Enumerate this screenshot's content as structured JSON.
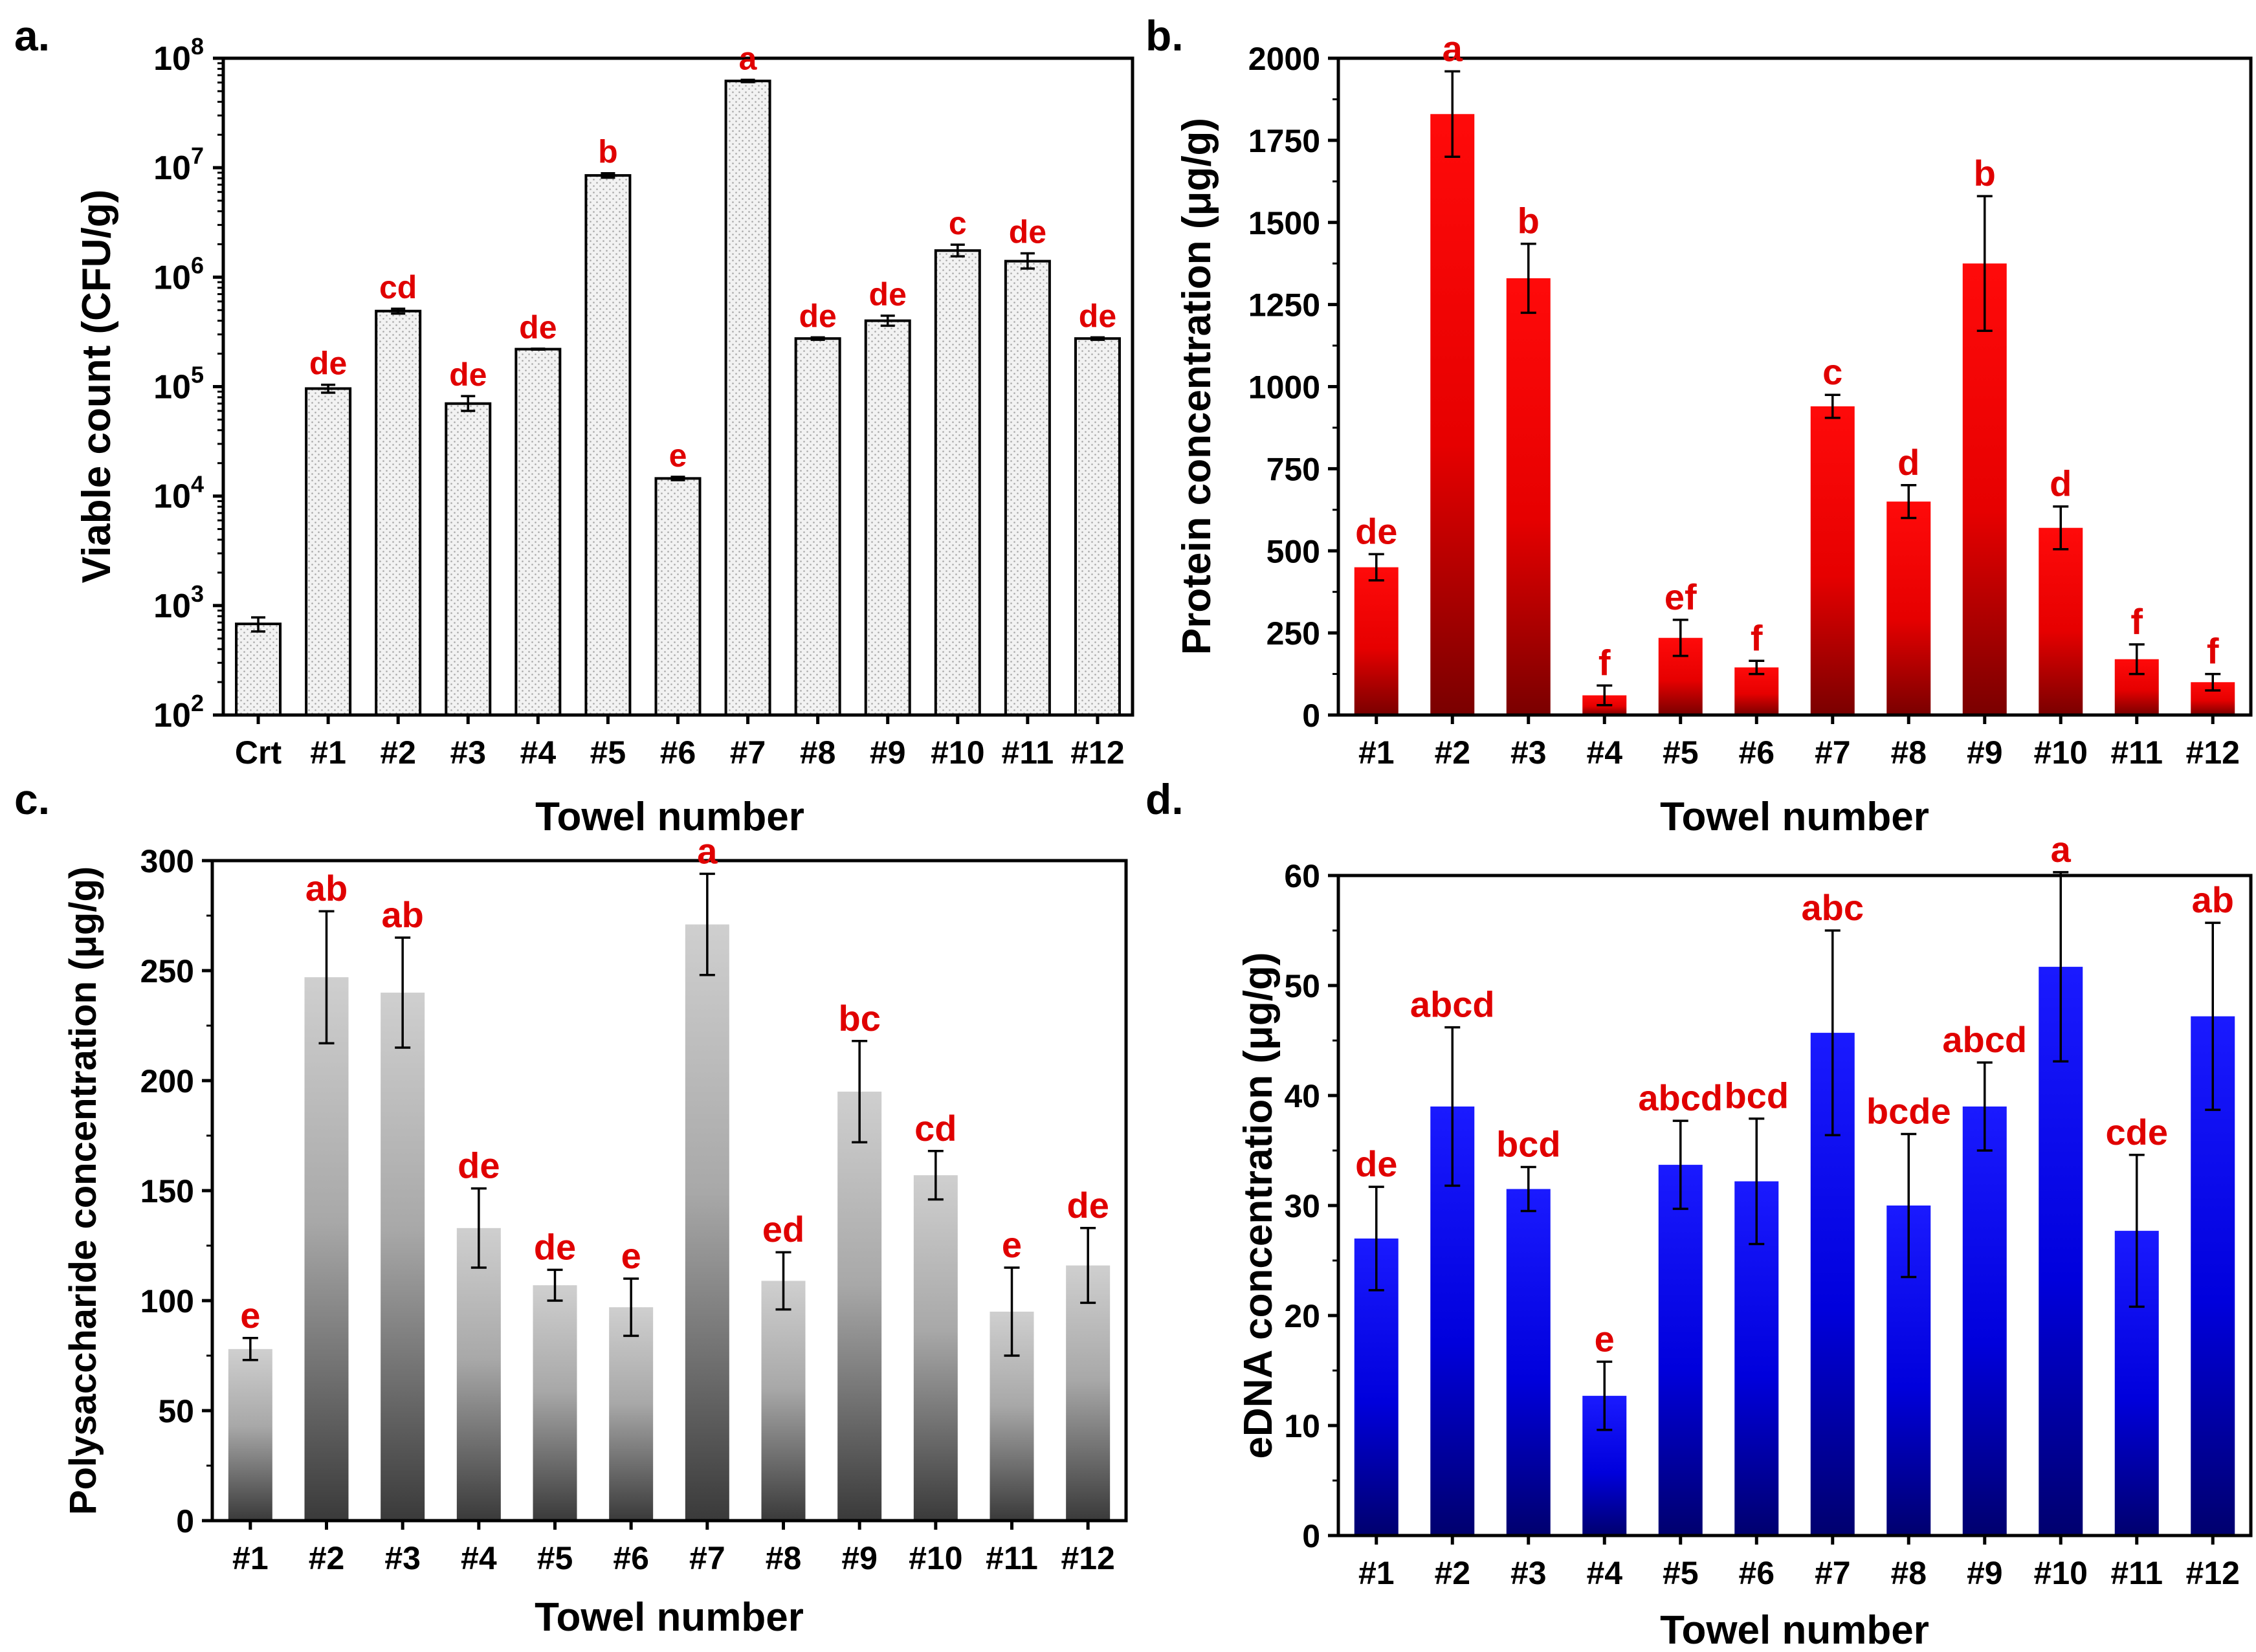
{
  "colors": {
    "sig_letter": "#e00000",
    "axis": "#000000",
    "bar_a_fill": "#f2f2f2",
    "bar_a_dot": "#a6a6a6",
    "bar_b_top": "#ff0a0a",
    "bar_b_bottom": "#7a0000",
    "bar_c_top": "#cfcfcf",
    "bar_c_bottom": "#3a3a3a",
    "bar_d_top": "#1a1aff",
    "bar_d_bottom": "#00006e"
  },
  "chart_data": [
    {
      "panel_label": "a.",
      "type": "bar",
      "yscale": "log",
      "ylabel": "Viable count (CFU/g)",
      "xlabel": "Towel number",
      "ylim": [
        100,
        100000000
      ],
      "ytick_labels": [
        {
          "value": 100,
          "base": "10",
          "exp": "2"
        },
        {
          "value": 1000,
          "base": "10",
          "exp": "3"
        },
        {
          "value": 10000,
          "base": "10",
          "exp": "4"
        },
        {
          "value": 100000,
          "base": "10",
          "exp": "5"
        },
        {
          "value": 1000000,
          "base": "10",
          "exp": "6"
        },
        {
          "value": 10000000,
          "base": "10",
          "exp": "7"
        },
        {
          "value": 100000000,
          "base": "10",
          "exp": "8"
        }
      ],
      "categories": [
        "Crt",
        "#1",
        "#2",
        "#3",
        "#4",
        "#5",
        "#6",
        "#7",
        "#8",
        "#9",
        "#10",
        "#11",
        "#12"
      ],
      "values": [
        680,
        96000,
        490000,
        70000,
        220000,
        8500000,
        14500,
        62000000,
        275000,
        400000,
        1750000,
        1400000,
        275000
      ],
      "err_low": [
        580,
        88000,
        465000,
        60000,
        218000,
        8100000,
        14000,
        60500000,
        268000,
        360000,
        1550000,
        1200000,
        268000
      ],
      "err_high": [
        780,
        104000,
        515000,
        82000,
        222000,
        8900000,
        15000,
        63500000,
        282000,
        445000,
        1980000,
        1650000,
        282000
      ],
      "sig_letters": [
        "",
        "de",
        "cd",
        "de",
        "de",
        "b",
        "e",
        "a",
        "de",
        "de",
        "c",
        "de",
        "de"
      ]
    },
    {
      "panel_label": "b.",
      "type": "bar",
      "yscale": "linear",
      "ylabel": "Protein concentration (μg/g)",
      "xlabel": "Towel number",
      "ylim": [
        0,
        2000
      ],
      "ytick_labels": [
        "0",
        "250",
        "500",
        "750",
        "1000",
        "1250",
        "1500",
        "1750",
        "2000"
      ],
      "categories": [
        "#1",
        "#2",
        "#3",
        "#4",
        "#5",
        "#6",
        "#7",
        "#8",
        "#9",
        "#10",
        "#11",
        "#12"
      ],
      "values": [
        450,
        1830,
        1330,
        60,
        235,
        145,
        940,
        650,
        1375,
        570,
        170,
        100
      ],
      "errors": [
        40,
        130,
        105,
        30,
        55,
        20,
        35,
        50,
        205,
        65,
        45,
        25
      ],
      "sig_letters": [
        "de",
        "a",
        "b",
        "f",
        "ef",
        "f",
        "c",
        "d",
        "b",
        "d",
        "f",
        "f"
      ]
    },
    {
      "panel_label": "c.",
      "type": "bar",
      "yscale": "linear",
      "ylabel": "Polysaccharide concentration (μg/g)",
      "xlabel": "Towel number",
      "ylim": [
        0,
        300
      ],
      "ytick_labels": [
        "0",
        "50",
        "100",
        "150",
        "200",
        "250",
        "300"
      ],
      "categories": [
        "#1",
        "#2",
        "#3",
        "#4",
        "#5",
        "#6",
        "#7",
        "#8",
        "#9",
        "#10",
        "#11",
        "#12"
      ],
      "values": [
        78,
        247,
        240,
        133,
        107,
        97,
        271,
        109,
        195,
        157,
        95,
        116
      ],
      "errors": [
        5,
        30,
        25,
        18,
        7,
        13,
        23,
        13,
        23,
        11,
        20,
        17
      ],
      "sig_letters": [
        "e",
        "ab",
        "ab",
        "de",
        "de",
        "e",
        "a",
        "ed",
        "bc",
        "cd",
        "e",
        "de"
      ]
    },
    {
      "panel_label": "d.",
      "type": "bar",
      "yscale": "linear",
      "ylabel": "eDNA concentration (μg/g)",
      "xlabel": "Towel number",
      "ylim": [
        0,
        60
      ],
      "ytick_labels": [
        "0",
        "10",
        "20",
        "30",
        "40",
        "50",
        "60"
      ],
      "categories": [
        "#1",
        "#2",
        "#3",
        "#4",
        "#5",
        "#6",
        "#7",
        "#8",
        "#9",
        "#10",
        "#11",
        "#12"
      ],
      "values": [
        27,
        39,
        31.5,
        12.7,
        33.7,
        32.2,
        45.7,
        30,
        39,
        51.7,
        27.7,
        47.2
      ],
      "errors": [
        4.7,
        7.2,
        2,
        3.1,
        4,
        5.7,
        9.3,
        6.5,
        4,
        8.6,
        6.9,
        8.5
      ],
      "sig_letters": [
        "de",
        "abcd",
        "bcd",
        "e",
        "abcd",
        "bcd",
        "abc",
        "bcde",
        "abcd",
        "a",
        "cde",
        "ab"
      ]
    }
  ]
}
